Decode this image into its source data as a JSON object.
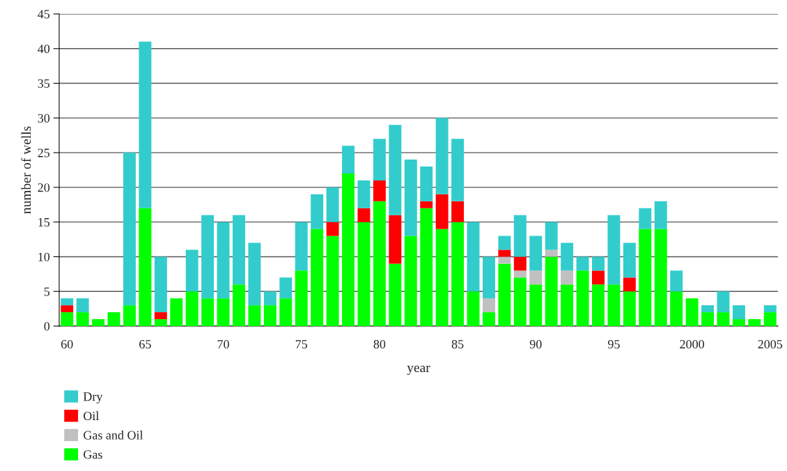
{
  "chart_data": {
    "type": "bar",
    "stacked": true,
    "xlabel": "year",
    "ylabel": "number of wells",
    "categories": [
      "60",
      null,
      null,
      null,
      null,
      "65",
      null,
      null,
      null,
      null,
      "70",
      null,
      null,
      null,
      null,
      "75",
      null,
      null,
      null,
      null,
      "80",
      null,
      null,
      null,
      null,
      "85",
      null,
      null,
      null,
      null,
      "90",
      null,
      null,
      null,
      null,
      "95",
      null,
      null,
      null,
      null,
      "2000",
      null,
      null,
      null,
      null,
      "2005"
    ],
    "series": [
      {
        "name": "Gas",
        "color": "#00ff00",
        "values": [
          2,
          2,
          1,
          2,
          3,
          17,
          1,
          4,
          5,
          4,
          4,
          6,
          3,
          3,
          4,
          8,
          14,
          13,
          22,
          15,
          18,
          9,
          13,
          17,
          14,
          15,
          5,
          2,
          9,
          7,
          6,
          10,
          6,
          8,
          6,
          6,
          5,
          14,
          14,
          5,
          4,
          2,
          2,
          1,
          1,
          2
        ]
      },
      {
        "name": "Gas and Oil",
        "color": "#c0c0c0",
        "values": [
          0,
          0,
          0,
          0,
          0,
          0,
          0,
          0,
          0,
          0,
          0,
          0,
          0,
          0,
          0,
          0,
          0,
          0,
          0,
          0,
          0,
          0,
          0,
          0,
          0,
          0,
          0,
          2,
          1,
          1,
          2,
          1,
          2,
          0,
          0,
          0,
          0,
          0,
          0,
          0,
          0,
          0,
          0,
          0,
          0,
          0
        ]
      },
      {
        "name": "Oil",
        "color": "#ff0000",
        "values": [
          1,
          0,
          0,
          0,
          0,
          0,
          1,
          0,
          0,
          0,
          0,
          0,
          0,
          0,
          0,
          0,
          0,
          2,
          0,
          2,
          3,
          7,
          0,
          1,
          5,
          3,
          0,
          0,
          1,
          2,
          0,
          0,
          0,
          0,
          2,
          0,
          2,
          0,
          0,
          0,
          0,
          0,
          0,
          0,
          0,
          0
        ]
      },
      {
        "name": "Dry",
        "color": "#33cccc",
        "values": [
          1,
          2,
          0,
          0,
          22,
          24,
          8,
          0,
          6,
          12,
          11,
          10,
          9,
          2,
          3,
          7,
          5,
          5,
          4,
          4,
          6,
          13,
          11,
          5,
          11,
          9,
          10,
          6,
          2,
          6,
          5,
          4,
          4,
          2,
          2,
          10,
          5,
          3,
          4,
          3,
          0,
          1,
          3,
          2,
          0,
          1
        ]
      }
    ],
    "ylim": [
      0,
      45
    ],
    "yticks": [
      0,
      5,
      10,
      15,
      20,
      25,
      30,
      35,
      40,
      45
    ],
    "grid": "y",
    "legend": "bottom left"
  }
}
